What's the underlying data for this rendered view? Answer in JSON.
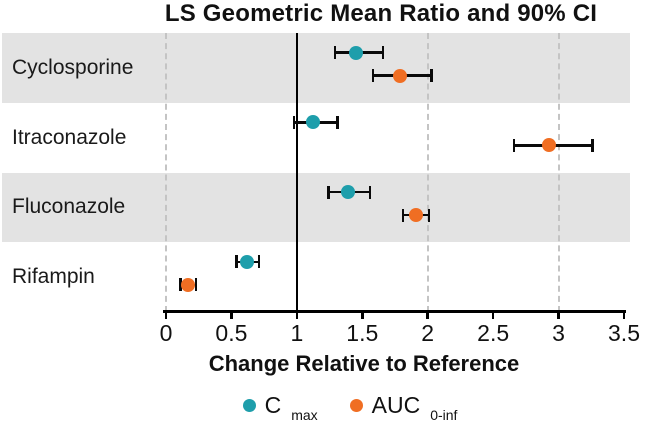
{
  "figure": {
    "title": "LS Geometric Mean Ratio and 90% CI",
    "xlabel": "Change Relative to Reference"
  },
  "legend": {
    "items": [
      {
        "id": "cmax",
        "main": "C",
        "sub": "max",
        "color": "#1E9EAB"
      },
      {
        "id": "auc0inf",
        "main": "AUC",
        "sub": "0-inf",
        "color": "#F06E23"
      }
    ]
  },
  "chart_data": {
    "type": "scatter",
    "subtype": "forest-plot-horizontal-error-bars",
    "title": "LS Geometric Mean Ratio and 90% CI",
    "xlabel": "Change Relative to Reference",
    "ci_level": "90%",
    "categories": [
      "Cyclosporine",
      "Itraconazole",
      "Fluconazole",
      "Rifampin"
    ],
    "band_rows_shaded": [
      "Cyclosporine",
      "Fluconazole"
    ],
    "series": [
      {
        "name": "Cmax",
        "color": "#1E9EAB",
        "points": [
          {
            "category": "Cyclosporine",
            "value": 1.45,
            "ci_low": 1.29,
            "ci_high": 1.66
          },
          {
            "category": "Itraconazole",
            "value": 1.12,
            "ci_low": 0.98,
            "ci_high": 1.31
          },
          {
            "category": "Fluconazole",
            "value": 1.39,
            "ci_low": 1.24,
            "ci_high": 1.56
          },
          {
            "category": "Rifampin",
            "value": 0.62,
            "ci_low": 0.54,
            "ci_high": 0.71
          }
        ]
      },
      {
        "name": "AUC0-inf",
        "color": "#F06E23",
        "points": [
          {
            "category": "Cyclosporine",
            "value": 1.79,
            "ci_low": 1.58,
            "ci_high": 2.03
          },
          {
            "category": "Itraconazole",
            "value": 2.93,
            "ci_low": 2.66,
            "ci_high": 3.26
          },
          {
            "category": "Fluconazole",
            "value": 1.91,
            "ci_low": 1.81,
            "ci_high": 2.01
          },
          {
            "category": "Rifampin",
            "value": 0.17,
            "ci_low": 0.11,
            "ci_high": 0.23
          }
        ]
      }
    ],
    "xlim": [
      0,
      3.5
    ],
    "xticks": [
      0,
      0.5,
      1,
      1.5,
      2,
      2.5,
      3,
      3.5
    ],
    "xtick_labels": [
      "0",
      "0.5",
      "1",
      "1.5",
      "2",
      "2.5",
      "3",
      "3.5"
    ],
    "gridlines_x": [
      0,
      1,
      2,
      3
    ],
    "grid_style": "dashed",
    "reference_line_x": 1,
    "legend_position": "bottom"
  },
  "colors": {
    "cmax": "#1E9EAB",
    "auc0inf": "#F06E23",
    "shaded_band": "#E3E3E3",
    "gridline": "#C4C4C4",
    "axis": "#000000",
    "text": "#111111"
  }
}
